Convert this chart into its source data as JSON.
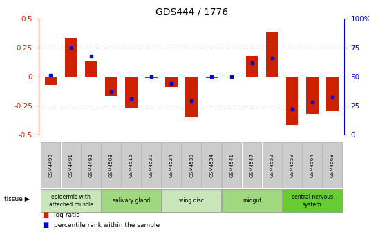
{
  "title": "GDS444 / 1776",
  "samples": [
    "GSM4490",
    "GSM4491",
    "GSM4492",
    "GSM4508",
    "GSM4515",
    "GSM4520",
    "GSM4524",
    "GSM4530",
    "GSM4534",
    "GSM4541",
    "GSM4547",
    "GSM4552",
    "GSM4559",
    "GSM4564",
    "GSM4568"
  ],
  "log_ratios": [
    -0.07,
    0.33,
    0.13,
    -0.17,
    -0.27,
    -0.01,
    -0.09,
    -0.35,
    -0.01,
    0.0,
    0.18,
    0.38,
    -0.42,
    -0.32,
    -0.3
  ],
  "percentile_ranks": [
    51,
    75,
    68,
    37,
    31,
    50,
    44,
    29,
    50,
    50,
    62,
    66,
    22,
    28,
    32
  ],
  "tissues": [
    {
      "label": "epidermis with\nattached muscle",
      "start": 0,
      "end": 3,
      "color": "#c8e6b8"
    },
    {
      "label": "salivary gland",
      "start": 3,
      "end": 6,
      "color": "#a0d880"
    },
    {
      "label": "wing disc",
      "start": 6,
      "end": 9,
      "color": "#c8e6b8"
    },
    {
      "label": "midgut",
      "start": 9,
      "end": 12,
      "color": "#a0d880"
    },
    {
      "label": "central nervous\nsystem",
      "start": 12,
      "end": 15,
      "color": "#66cc33"
    }
  ],
  "bar_color": "#cc2200",
  "percentile_color": "#0000cc",
  "ylim": [
    -0.5,
    0.5
  ],
  "yticks": [
    -0.5,
    -0.25,
    0.0,
    0.25,
    0.5
  ],
  "ytick_labels_left": [
    "-0.5",
    "-0.25",
    "0",
    "0.25",
    "0.5"
  ],
  "ylabel_color_left": "#cc2200",
  "ylabel_color_right": "#0000cc",
  "xticklabel_bg": "#cccccc",
  "zero_line_color": "#cc2200",
  "grid_color": "black"
}
